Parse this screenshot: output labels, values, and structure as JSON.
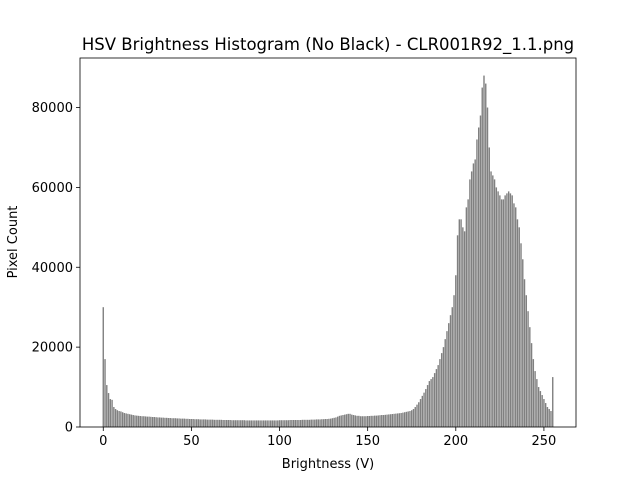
{
  "chart_data": {
    "type": "bar",
    "title": "HSV Brightness Histogram (No Black) - CLR001R92_1.1.png",
    "x_label": "Brightness (V)",
    "y_label": "Pixel Count",
    "color": "#808080",
    "x": [
      0,
      1,
      2,
      3,
      4,
      5,
      6,
      7,
      8,
      9,
      10,
      11,
      12,
      13,
      14,
      15,
      16,
      17,
      18,
      19,
      20,
      21,
      22,
      23,
      24,
      25,
      26,
      27,
      28,
      29,
      30,
      31,
      32,
      33,
      34,
      35,
      36,
      37,
      38,
      39,
      40,
      41,
      42,
      43,
      44,
      45,
      46,
      47,
      48,
      49,
      50,
      51,
      52,
      53,
      54,
      55,
      56,
      57,
      58,
      59,
      60,
      61,
      62,
      63,
      64,
      65,
      66,
      67,
      68,
      69,
      70,
      71,
      72,
      73,
      74,
      75,
      76,
      77,
      78,
      79,
      80,
      81,
      82,
      83,
      84,
      85,
      86,
      87,
      88,
      89,
      90,
      91,
      92,
      93,
      94,
      95,
      96,
      97,
      98,
      99,
      100,
      101,
      102,
      103,
      104,
      105,
      106,
      107,
      108,
      109,
      110,
      111,
      112,
      113,
      114,
      115,
      116,
      117,
      118,
      119,
      120,
      121,
      122,
      123,
      124,
      125,
      126,
      127,
      128,
      129,
      130,
      131,
      132,
      133,
      134,
      135,
      136,
      137,
      138,
      139,
      140,
      141,
      142,
      143,
      144,
      145,
      146,
      147,
      148,
      149,
      150,
      151,
      152,
      153,
      154,
      155,
      156,
      157,
      158,
      159,
      160,
      161,
      162,
      163,
      164,
      165,
      166,
      167,
      168,
      169,
      170,
      171,
      172,
      173,
      174,
      175,
      176,
      177,
      178,
      179,
      180,
      181,
      182,
      183,
      184,
      185,
      186,
      187,
      188,
      189,
      190,
      191,
      192,
      193,
      194,
      195,
      196,
      197,
      198,
      199,
      200,
      201,
      202,
      203,
      204,
      205,
      206,
      207,
      208,
      209,
      210,
      211,
      212,
      213,
      214,
      215,
      216,
      217,
      218,
      219,
      220,
      221,
      222,
      223,
      224,
      225,
      226,
      227,
      228,
      229,
      230,
      231,
      232,
      233,
      234,
      235,
      236,
      237,
      238,
      239,
      240,
      241,
      242,
      243,
      244,
      245,
      246,
      247,
      248,
      249,
      250,
      251,
      252,
      253,
      254,
      255
    ],
    "values": [
      30000,
      17000,
      10500,
      8500,
      7000,
      6800,
      5000,
      4500,
      4200,
      4000,
      3900,
      3700,
      3500,
      3400,
      3300,
      3200,
      3100,
      3000,
      2900,
      2850,
      2800,
      2750,
      2700,
      2700,
      2650,
      2600,
      2600,
      2550,
      2500,
      2500,
      2450,
      2400,
      2400,
      2350,
      2350,
      2300,
      2300,
      2250,
      2250,
      2200,
      2200,
      2200,
      2150,
      2150,
      2100,
      2100,
      2100,
      2050,
      2050,
      2000,
      2000,
      2000,
      1950,
      1950,
      1950,
      1900,
      1900,
      1900,
      1900,
      1850,
      1850,
      1850,
      1850,
      1800,
      1800,
      1800,
      1800,
      1800,
      1750,
      1750,
      1750,
      1750,
      1750,
      1700,
      1700,
      1700,
      1700,
      1700,
      1700,
      1700,
      1700,
      1650,
      1650,
      1650,
      1650,
      1650,
      1650,
      1650,
      1650,
      1650,
      1650,
      1650,
      1650,
      1650,
      1650,
      1650,
      1650,
      1650,
      1650,
      1650,
      1700,
      1700,
      1700,
      1700,
      1700,
      1700,
      1750,
      1750,
      1750,
      1750,
      1750,
      1750,
      1750,
      1800,
      1800,
      1800,
      1800,
      1800,
      1850,
      1850,
      1850,
      1900,
      1900,
      1900,
      1950,
      1950,
      2000,
      2000,
      2050,
      2100,
      2200,
      2300,
      2400,
      2600,
      2800,
      2900,
      3000,
      3100,
      3200,
      3300,
      3300,
      3100,
      3000,
      2900,
      2800,
      2800,
      2700,
      2700,
      2700,
      2700,
      2750,
      2750,
      2800,
      2800,
      2850,
      2850,
      2900,
      2950,
      3000,
      3000,
      3050,
      3100,
      3150,
      3200,
      3250,
      3300,
      3350,
      3400,
      3450,
      3500,
      3600,
      3700,
      3800,
      3900,
      4000,
      4200,
      4500,
      5000,
      5600,
      6200,
      7000,
      7800,
      8600,
      9500,
      10500,
      11500,
      12000,
      12500,
      13500,
      14500,
      15500,
      17000,
      18500,
      20000,
      22000,
      24000,
      26000,
      28000,
      30000,
      33000,
      38000,
      48000,
      52000,
      52000,
      50000,
      49000,
      55000,
      57000,
      62000,
      64000,
      66000,
      67000,
      72000,
      75000,
      78000,
      85000,
      88000,
      86000,
      80000,
      70000,
      64000,
      63000,
      62000,
      60000,
      59000,
      58000,
      57000,
      57000,
      58000,
      58500,
      59000,
      58500,
      58000,
      56000,
      55000,
      52000,
      50000,
      46000,
      42000,
      37000,
      33000,
      29000,
      25000,
      21000,
      17000,
      14000,
      12000,
      10000,
      9000,
      8000,
      7000,
      6000,
      5000,
      4500,
      4000,
      12500
    ],
    "xlim": [
      -13.2,
      268.2
    ],
    "ylim": [
      0,
      92400
    ],
    "xticks": [
      0,
      50,
      100,
      150,
      200,
      250
    ],
    "yticks": [
      0,
      20000,
      40000,
      60000,
      80000
    ]
  }
}
